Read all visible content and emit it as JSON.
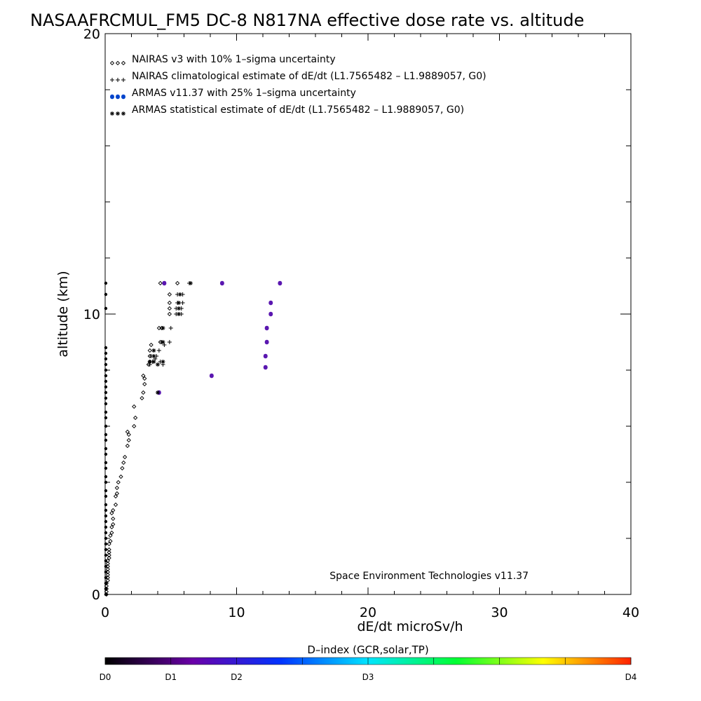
{
  "chart_data": {
    "type": "scatter",
    "title": "NASAAFRCMUL_FM5 DC-8   N817NA effective dose rate vs. altitude",
    "xlabel": "dE/dt microSv/h",
    "ylabel": "altitude (km)",
    "xlim": [
      0,
      40
    ],
    "ylim": [
      0,
      20
    ],
    "x_ticks": [
      "0",
      "10",
      "20",
      "30",
      "40"
    ],
    "y_ticks": [
      "0",
      "10",
      "20"
    ],
    "legend_position": "top-left",
    "annotation": "Space Environment Technologies v11.37",
    "colorbar": {
      "title": "D–index (GCR,solar,TP)",
      "labels": [
        "D0",
        "D1",
        "D2",
        "D3",
        "D4"
      ],
      "label_values": [
        0,
        1,
        2,
        4,
        8
      ],
      "range": [
        0,
        8
      ],
      "colors": [
        "#000000",
        "#6a00a8",
        "#0033ff",
        "#00e5ff",
        "#00ff33",
        "#ffff00",
        "#ff2200"
      ]
    },
    "series": [
      {
        "name": "NAIRAS v3 with 10% 1–sigma uncertainty",
        "marker": "diamond",
        "color": "#000000",
        "points": [
          [
            0.1,
            0.0
          ],
          [
            0.1,
            0.1
          ],
          [
            0.1,
            0.2
          ],
          [
            0.1,
            0.3
          ],
          [
            0.1,
            0.4
          ],
          [
            0.2,
            0.5
          ],
          [
            0.2,
            0.6
          ],
          [
            0.2,
            0.7
          ],
          [
            0.2,
            0.8
          ],
          [
            0.2,
            0.9
          ],
          [
            0.2,
            1.0
          ],
          [
            0.2,
            1.1
          ],
          [
            0.2,
            1.2
          ],
          [
            0.3,
            1.3
          ],
          [
            0.3,
            1.4
          ],
          [
            0.3,
            1.5
          ],
          [
            0.3,
            1.6
          ],
          [
            0.3,
            1.8
          ],
          [
            0.4,
            1.9
          ],
          [
            0.4,
            2.1
          ],
          [
            0.5,
            2.2
          ],
          [
            0.5,
            2.4
          ],
          [
            0.6,
            2.5
          ],
          [
            0.6,
            2.7
          ],
          [
            0.5,
            2.9
          ],
          [
            0.6,
            3.0
          ],
          [
            0.8,
            3.2
          ],
          [
            0.8,
            3.5
          ],
          [
            0.9,
            3.6
          ],
          [
            0.9,
            3.8
          ],
          [
            1.0,
            4.0
          ],
          [
            1.2,
            4.2
          ],
          [
            1.3,
            4.5
          ],
          [
            1.4,
            4.7
          ],
          [
            1.5,
            4.9
          ],
          [
            1.7,
            5.3
          ],
          [
            1.8,
            5.5
          ],
          [
            1.8,
            5.7
          ],
          [
            1.7,
            5.8
          ],
          [
            2.2,
            6.0
          ],
          [
            2.3,
            6.3
          ],
          [
            2.2,
            6.7
          ],
          [
            2.8,
            7.0
          ],
          [
            2.9,
            7.2
          ],
          [
            3.0,
            7.5
          ],
          [
            3.0,
            7.7
          ],
          [
            2.9,
            7.8
          ],
          [
            3.3,
            8.2
          ],
          [
            3.4,
            8.3
          ],
          [
            3.4,
            8.5
          ],
          [
            3.4,
            8.7
          ],
          [
            3.5,
            8.9
          ],
          [
            4.1,
            9.5
          ],
          [
            4.3,
            9.5
          ],
          [
            4.2,
            9.0
          ],
          [
            4.9,
            10.0
          ],
          [
            4.9,
            10.2
          ],
          [
            4.9,
            10.4
          ],
          [
            4.9,
            10.7
          ],
          [
            5.5,
            11.1
          ],
          [
            4.2,
            11.1
          ]
        ]
      },
      {
        "name": "NAIRAS climatological estimate of dE/dt (L1.7565482 – L1.9889057, G0)",
        "marker": "plus",
        "color": "#000000",
        "points": [
          [
            3.4,
            8.2
          ],
          [
            3.6,
            8.3
          ],
          [
            3.8,
            8.4
          ],
          [
            4.0,
            8.2
          ],
          [
            4.2,
            8.3
          ],
          [
            4.4,
            8.2
          ],
          [
            3.5,
            8.5
          ],
          [
            3.9,
            8.5
          ],
          [
            4.1,
            8.7
          ],
          [
            4.5,
            8.9
          ],
          [
            4.3,
            9.0
          ],
          [
            4.9,
            9.0
          ],
          [
            5.0,
            9.5
          ],
          [
            5.4,
            10.0
          ],
          [
            5.8,
            10.0
          ],
          [
            5.4,
            10.2
          ],
          [
            5.8,
            10.2
          ],
          [
            5.5,
            10.4
          ],
          [
            5.9,
            10.4
          ],
          [
            5.5,
            10.7
          ],
          [
            5.9,
            10.7
          ],
          [
            6.4,
            11.1
          ]
        ]
      },
      {
        "name": "ARMAS v11.37 with 25% 1–sigma uncertainty",
        "marker": "circle",
        "color": "#0044cc",
        "points": [
          [
            4.5,
            11.1
          ],
          [
            8.9,
            11.1
          ],
          [
            13.3,
            11.1
          ],
          [
            12.6,
            10.4
          ],
          [
            12.6,
            10.0
          ],
          [
            12.3,
            9.5
          ],
          [
            12.3,
            9.0
          ],
          [
            12.2,
            8.5
          ],
          [
            12.2,
            8.1
          ],
          [
            8.1,
            7.8
          ],
          [
            4.1,
            7.2
          ]
        ]
      },
      {
        "name": "ARMAS statistical estimate of dE/dt (L1.7565482 – L1.9889057, G0)",
        "marker": "asterisk",
        "color": "#000000",
        "points": [
          [
            6.5,
            11.1
          ],
          [
            5.7,
            10.7
          ],
          [
            5.6,
            10.4
          ],
          [
            5.6,
            10.2
          ],
          [
            5.6,
            10.0
          ],
          [
            4.4,
            9.5
          ],
          [
            4.4,
            9.0
          ],
          [
            3.7,
            8.7
          ],
          [
            3.7,
            8.5
          ],
          [
            3.4,
            8.3
          ],
          [
            3.7,
            8.3
          ],
          [
            4.0,
            8.2
          ],
          [
            4.4,
            8.3
          ],
          [
            4.0,
            7.2
          ]
        ]
      },
      {
        "name": "",
        "marker": "dot",
        "color": "#000000",
        "points": [
          [
            0.05,
            11.1
          ],
          [
            0.05,
            10.7
          ],
          [
            0.05,
            10.2
          ],
          [
            0.05,
            8.8
          ],
          [
            0.05,
            8.6
          ],
          [
            0.05,
            8.4
          ],
          [
            0.05,
            8.2
          ],
          [
            0.05,
            8.0
          ],
          [
            0.05,
            7.8
          ],
          [
            0.05,
            7.6
          ],
          [
            0.05,
            7.4
          ],
          [
            0.05,
            7.2
          ],
          [
            0.05,
            7.0
          ],
          [
            0.05,
            6.8
          ],
          [
            0.05,
            6.5
          ],
          [
            0.05,
            6.3
          ],
          [
            0.05,
            6.0
          ],
          [
            0.05,
            5.7
          ],
          [
            0.05,
            5.5
          ],
          [
            0.05,
            5.2
          ],
          [
            0.05,
            5.0
          ],
          [
            0.05,
            4.7
          ],
          [
            0.05,
            4.5
          ],
          [
            0.05,
            4.2
          ],
          [
            0.05,
            4.0
          ],
          [
            0.05,
            3.7
          ],
          [
            0.05,
            3.5
          ],
          [
            0.05,
            3.2
          ],
          [
            0.05,
            3.0
          ],
          [
            0.05,
            2.8
          ],
          [
            0.05,
            2.6
          ],
          [
            0.05,
            2.4
          ],
          [
            0.05,
            2.2
          ],
          [
            0.05,
            2.0
          ],
          [
            0.05,
            1.8
          ],
          [
            0.05,
            1.6
          ],
          [
            0.05,
            1.4
          ],
          [
            0.05,
            1.2
          ],
          [
            0.05,
            1.0
          ],
          [
            0.05,
            0.8
          ],
          [
            0.05,
            0.6
          ],
          [
            0.05,
            0.4
          ],
          [
            0.05,
            0.2
          ],
          [
            0.05,
            0.0
          ]
        ]
      }
    ]
  }
}
